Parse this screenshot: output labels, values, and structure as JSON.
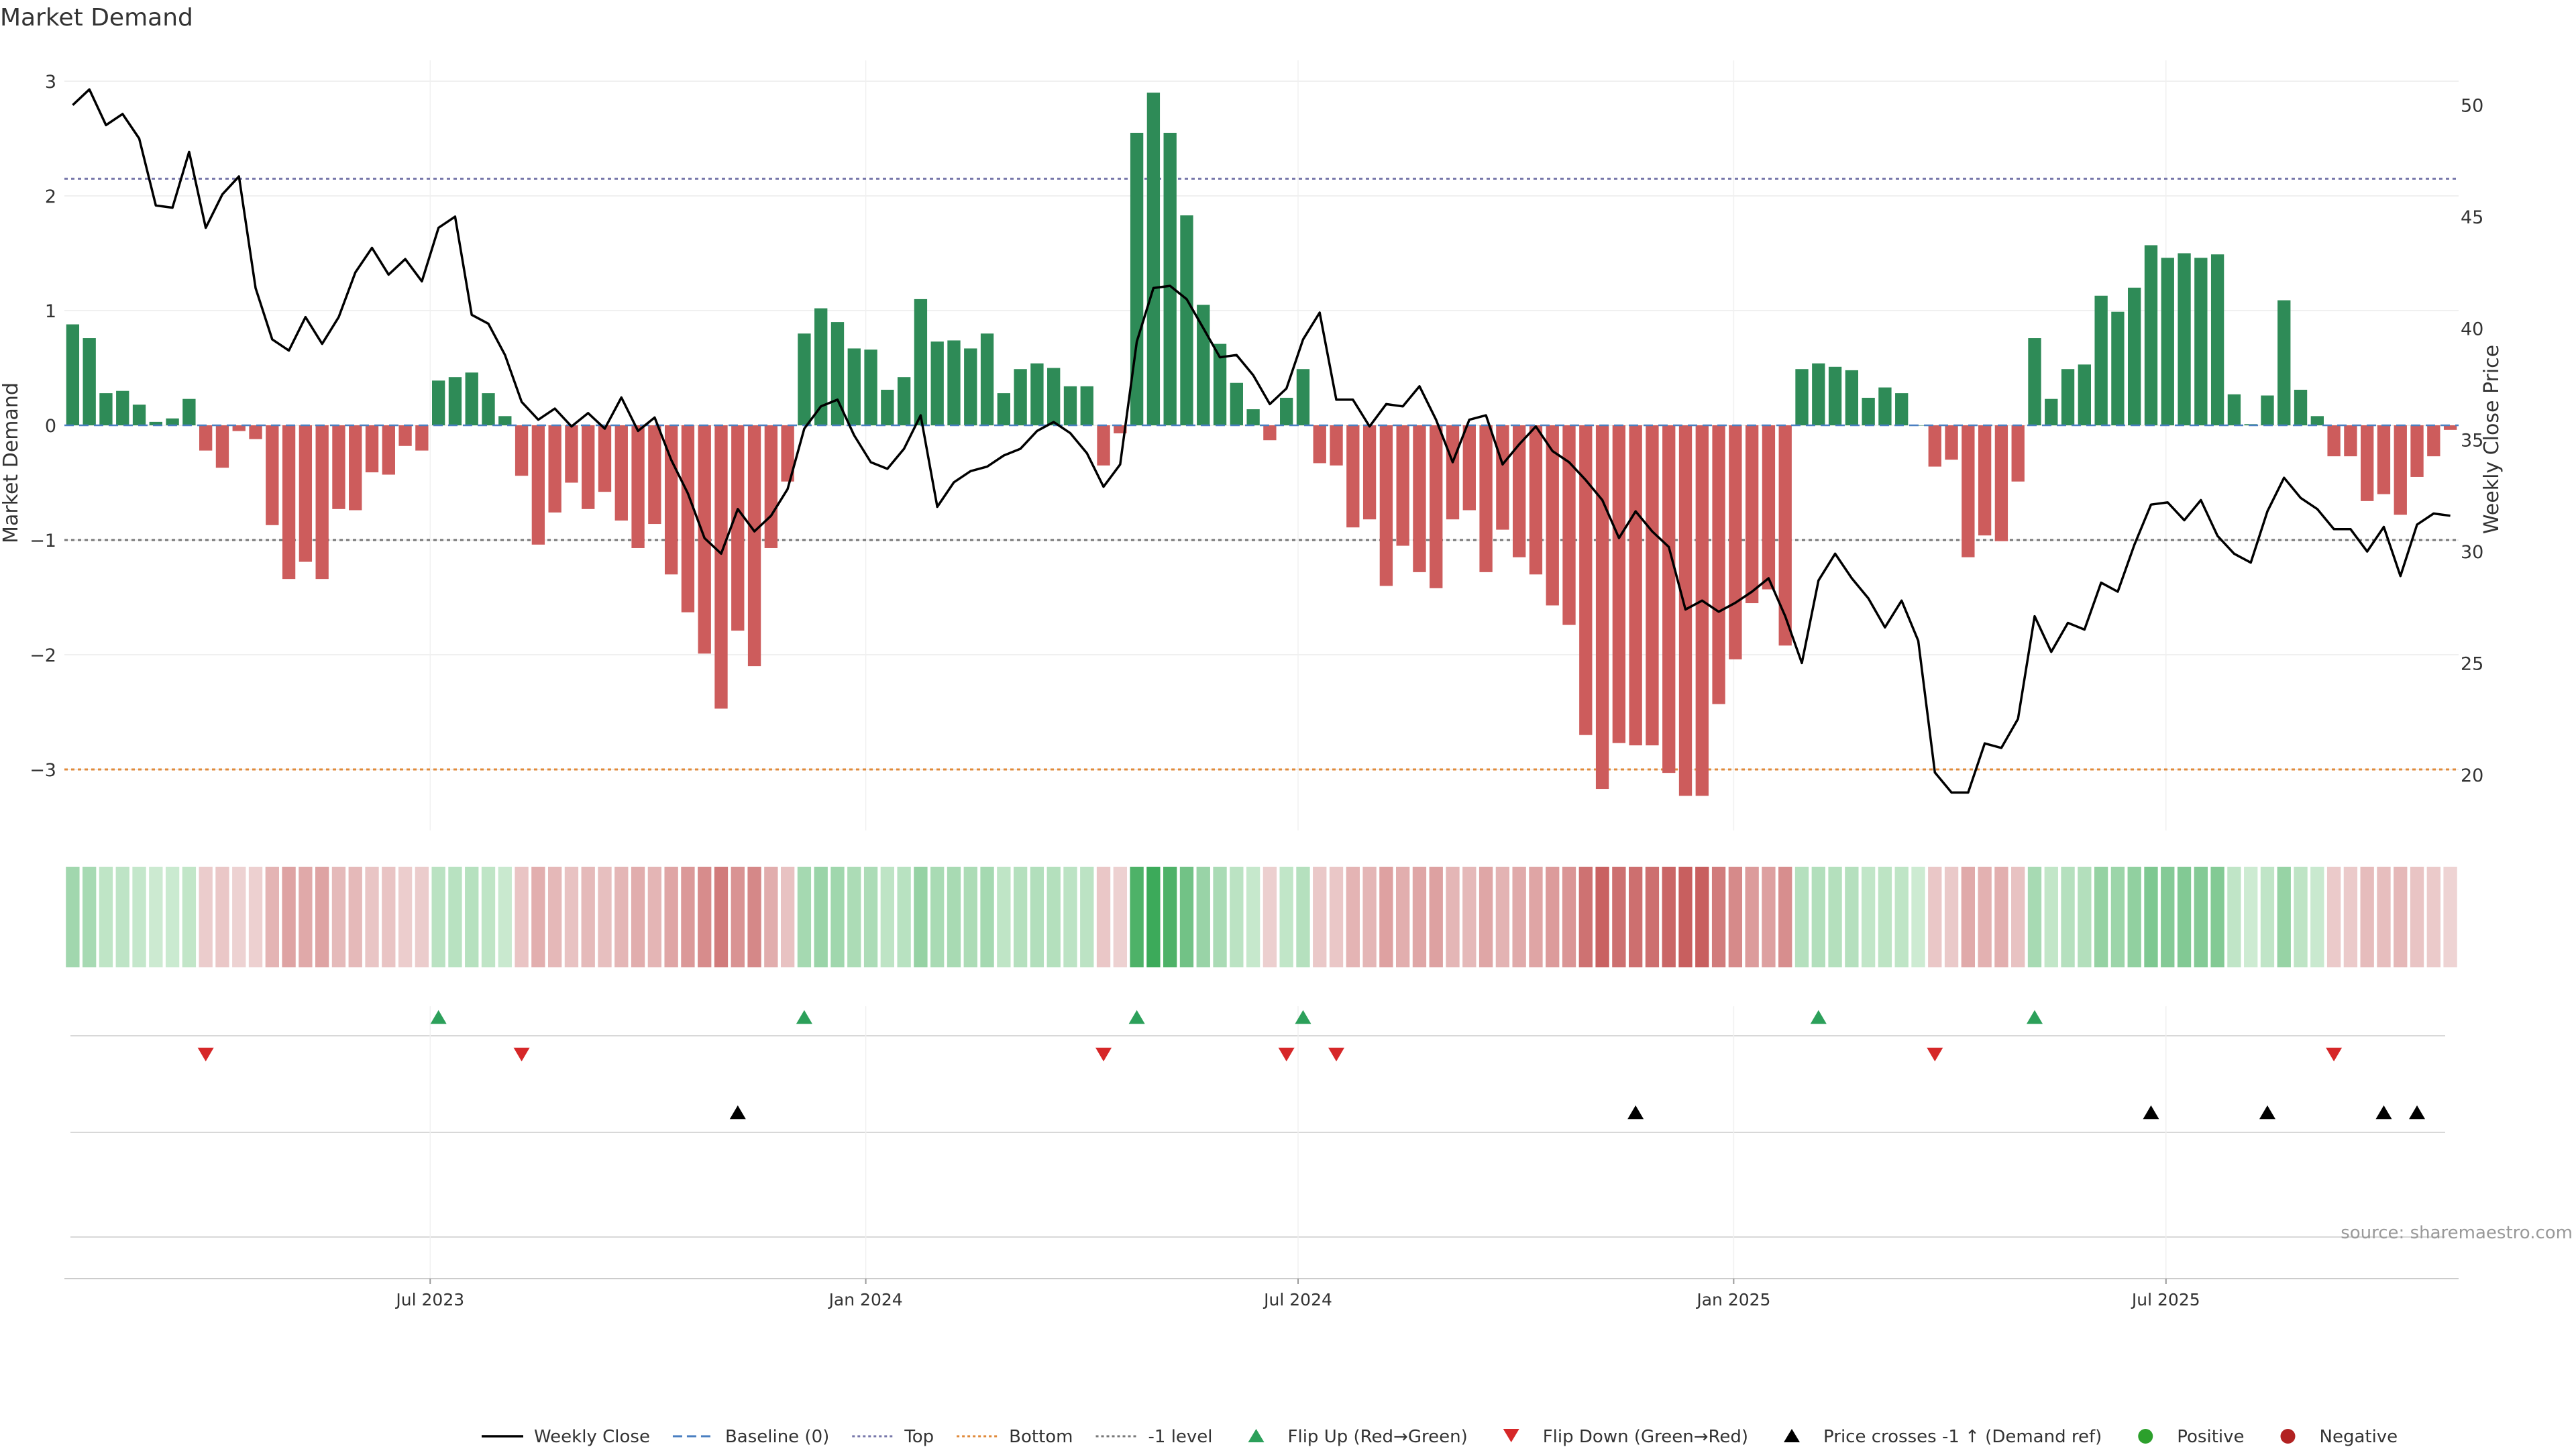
{
  "chart_data": {
    "type": "bar",
    "title": "Market Demand",
    "ylabel": "Market Demand",
    "y2label": "Weekly Close Price",
    "source": "source: sharemaestro.com",
    "ylim": [
      -3.6,
      3.05
    ],
    "y2lim": [
      17.5,
      52.0
    ],
    "yticks": [
      3,
      2,
      1,
      0,
      -1,
      -2,
      -3
    ],
    "ytick_labels": [
      "3",
      "2",
      "1",
      "0",
      "−1",
      "−2",
      "−3"
    ],
    "y2ticks": [
      50,
      45,
      40,
      35,
      30,
      25,
      20
    ],
    "y2tick_labels": [
      "50",
      "45",
      "40",
      "35",
      "30",
      "25",
      "20"
    ],
    "xticks": [
      {
        "label": "Jul 2023",
        "week": 21.5
      },
      {
        "label": "Jan 2024",
        "week": 47.7
      },
      {
        "label": "Jul 2024",
        "week": 73.7
      },
      {
        "label": "Jan 2025",
        "week": 99.9
      },
      {
        "label": "Jul 2025",
        "week": 125.9
      }
    ],
    "weeks": 144,
    "reference_lines": [
      {
        "name": "Top",
        "value": 2.15,
        "color": "#7777aa"
      },
      {
        "name": "-1 level",
        "value": -1,
        "color": "#777777"
      },
      {
        "name": "Bottom",
        "value": -3,
        "color": "#e08a3a"
      }
    ],
    "demand": [
      0.88,
      0.76,
      0.28,
      0.3,
      0.18,
      0.03,
      0.06,
      0.23,
      -0.22,
      -0.37,
      -0.05,
      -0.12,
      -0.87,
      -1.34,
      -1.19,
      -1.34,
      -0.73,
      -0.74,
      -0.41,
      -0.43,
      -0.18,
      -0.22,
      0.39,
      0.42,
      0.46,
      0.28,
      0.08,
      -0.44,
      -1.04,
      -0.76,
      -0.5,
      -0.73,
      -0.58,
      -0.83,
      -1.07,
      -0.86,
      -1.3,
      -1.63,
      -1.99,
      -2.47,
      -1.79,
      -2.1,
      -1.07,
      -0.49,
      0.8,
      1.02,
      0.9,
      0.67,
      0.66,
      0.31,
      0.42,
      1.1,
      0.73,
      0.74,
      0.67,
      0.8,
      0.28,
      0.49,
      0.54,
      0.5,
      0.34,
      0.34,
      -0.35,
      -0.07,
      2.55,
      2.9,
      2.55,
      1.83,
      1.05,
      0.71,
      0.37,
      0.14,
      -0.13,
      0.24,
      0.49,
      -0.33,
      -0.35,
      -0.89,
      -0.82,
      -1.4,
      -1.05,
      -1.28,
      -1.42,
      -0.82,
      -0.74,
      -1.28,
      -0.91,
      -1.15,
      -1.3,
      -1.57,
      -1.74,
      -2.7,
      -3.17,
      -2.77,
      -2.79,
      -2.79,
      -3.03,
      -3.23,
      -3.23,
      -2.43,
      -2.04,
      -1.55,
      -1.43,
      -1.92,
      0.49,
      0.54,
      0.51,
      0.48,
      0.24,
      0.33,
      0.28,
      0.0,
      -0.36,
      -0.3,
      -1.15,
      -0.96,
      -1.01,
      -0.49,
      0.76,
      0.23,
      0.49,
      0.53,
      1.13,
      0.99,
      1.2,
      1.57,
      1.46,
      1.5,
      1.46,
      1.49,
      0.27,
      0.01,
      0.26,
      1.09,
      0.31,
      0.08,
      -0.27,
      -0.27,
      -0.66,
      -0.6,
      -0.78,
      -0.45,
      -0.27,
      -0.04
    ],
    "weekly_close": [
      50.0,
      50.7,
      49.1,
      49.6,
      48.5,
      45.5,
      45.4,
      47.9,
      44.5,
      46.0,
      46.8,
      41.8,
      39.5,
      39.0,
      40.5,
      39.3,
      40.5,
      42.5,
      43.6,
      42.4,
      43.1,
      42.1,
      44.5,
      45.0,
      40.6,
      40.2,
      38.8,
      36.7,
      35.9,
      36.4,
      35.6,
      36.2,
      35.5,
      36.9,
      35.4,
      36.0,
      34.1,
      32.6,
      30.6,
      29.9,
      31.9,
      30.9,
      31.6,
      32.8,
      35.5,
      36.5,
      36.8,
      35.2,
      34.0,
      33.7,
      34.6,
      36.1,
      32.0,
      33.1,
      33.6,
      33.8,
      34.3,
      34.6,
      35.4,
      35.8,
      35.3,
      34.4,
      32.9,
      33.9,
      39.4,
      41.8,
      41.9,
      41.3,
      40.0,
      38.7,
      38.8,
      37.9,
      36.6,
      37.3,
      39.5,
      40.7,
      36.8,
      36.8,
      35.6,
      36.6,
      36.5,
      37.4,
      35.9,
      34.0,
      35.9,
      36.1,
      33.9,
      34.8,
      35.6,
      34.5,
      34.0,
      33.2,
      32.3,
      30.6,
      31.8,
      30.9,
      30.2,
      27.4,
      27.8,
      27.3,
      27.7,
      28.2,
      28.8,
      27.1,
      25.0,
      28.7,
      29.9,
      28.8,
      27.9,
      26.6,
      27.8,
      26.0,
      20.1,
      19.2,
      19.2,
      21.4,
      21.2,
      22.5,
      27.1,
      25.5,
      26.8,
      26.5,
      28.6,
      28.2,
      30.3,
      32.1,
      32.2,
      31.4,
      32.3,
      30.7,
      29.9,
      29.5,
      31.8,
      33.3,
      32.4,
      31.9,
      31.0,
      31.0,
      30.0,
      31.1,
      28.9,
      31.2,
      31.7,
      31.6
    ],
    "flip_up_weeks": [
      22,
      44,
      64,
      74,
      105,
      118
    ],
    "flip_down_weeks": [
      8,
      27,
      62,
      73,
      76,
      112,
      136
    ],
    "price_cross_weeks": [
      40,
      94,
      125,
      132,
      139,
      141
    ],
    "legend": [
      {
        "label": "Weekly Close",
        "kind": "line",
        "color": "#000000"
      },
      {
        "label": "Baseline (0)",
        "kind": "dash",
        "color": "#4a7fc1"
      },
      {
        "label": "Top",
        "kind": "dot",
        "color": "#7777aa"
      },
      {
        "label": "Bottom",
        "kind": "dot",
        "color": "#e08a3a"
      },
      {
        "label": "-1 level",
        "kind": "dot",
        "color": "#777777"
      },
      {
        "label": "Flip Up (Red→Green)",
        "kind": "tri-up",
        "color": "#2ca05a"
      },
      {
        "label": "Flip Down (Green→Red)",
        "kind": "tri-down",
        "color": "#d62728"
      },
      {
        "label": "Price crosses -1 ↑ (Demand ref)",
        "kind": "tri-up",
        "color": "#000000"
      },
      {
        "label": "Positive",
        "kind": "circle",
        "color": "#2ca02c"
      },
      {
        "label": "Negative",
        "kind": "circle",
        "color": "#b22222"
      }
    ],
    "colors": {
      "positive": "#2e8b57",
      "negative": "#cd5c5c",
      "line": "#000000",
      "baseline": "#4a7fc1",
      "flip_up": "#2ca05a",
      "flip_down": "#d62728",
      "cross": "#000000"
    }
  }
}
